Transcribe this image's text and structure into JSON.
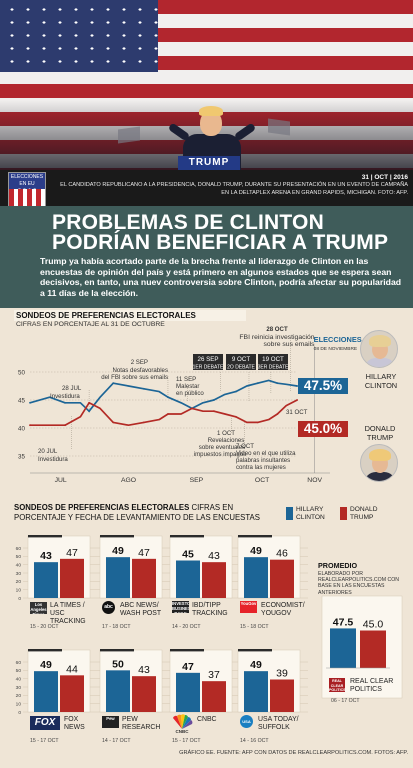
{
  "caption": {
    "date": "31 | OCT | 2016",
    "text": "EL CANDIDATO REPUBLICANO A LA PRESIDENCIA, DONALD TRUMP, DURANTE SU PRESENTACIÓN EN UN EVENTO DE CAMPAÑA EN LA DELTAPLEX ARENA EN GRAND RAPIDS, MICHIGAN. FOTO: AFP.",
    "badge_top": "ELECCIONES EN EU",
    "badge_year": "2016",
    "podium_sign": "TRUMP"
  },
  "headline": {
    "line1": "PROBLEMAS DE CLINTON",
    "line2": "PODRÍAN BENEFICIAR A TRUMP"
  },
  "lede": "Trump ya había acortado parte de la brecha frente al liderazgo de Clinton en las encuestas de opinión del país y está primero en algunos estados que se espera sean decisivos, en tanto, una nuev controversia sobre Clinton, podría afectar su popularidad a 11 días de la elección.",
  "colors": {
    "clinton": "#1c6596",
    "trump": "#b32a25",
    "headline_bg": "#3f5c5a",
    "page_bg": "#efe5d6"
  },
  "candidates": {
    "clinton_name": "HILLARY CLINTON",
    "trump_name": "DONALD TRUMP",
    "clinton_pct": "47.5%",
    "trump_pct": "45.0%"
  },
  "chart_data": [
    {
      "type": "line",
      "title": "SONDEOS DE PREFERENCIAS ELECTORALES",
      "subtitle": "CIFRAS EN PORCENTAJE AL 31 DE OCTUBRE",
      "ylim": [
        35,
        50
      ],
      "yticks": [
        35,
        40,
        45,
        50
      ],
      "xticks": [
        "JUL",
        "AGO",
        "SEP",
        "OCT",
        "NOV"
      ],
      "x_range": [
        "2016-07-01",
        "2016-11-15"
      ],
      "election_label": "ELECCIONES",
      "election_date": "08 DE NOVIEMBRE",
      "series": [
        {
          "name": "HILLARY CLINTON",
          "x": [
            "2016-07-01",
            "2016-07-10",
            "2016-07-17",
            "2016-07-24",
            "2016-07-28",
            "2016-08-02",
            "2016-08-08",
            "2016-08-15",
            "2016-08-22",
            "2016-08-29",
            "2016-09-02",
            "2016-09-08",
            "2016-09-13",
            "2016-09-18",
            "2016-09-23",
            "2016-09-28",
            "2016-10-03",
            "2016-10-08",
            "2016-10-13",
            "2016-10-18",
            "2016-10-22",
            "2016-10-26",
            "2016-10-31"
          ],
          "y": [
            44.5,
            45.5,
            44.5,
            44.5,
            43.0,
            45.5,
            48.0,
            47.5,
            47.0,
            46.5,
            45.5,
            44.5,
            43.5,
            44.5,
            45.0,
            46.0,
            46.5,
            47.5,
            48.0,
            48.5,
            48.0,
            47.8,
            47.5
          ]
        },
        {
          "name": "DONALD TRUMP",
          "x": [
            "2016-07-01",
            "2016-07-10",
            "2016-07-17",
            "2016-07-24",
            "2016-07-28",
            "2016-08-02",
            "2016-08-08",
            "2016-08-15",
            "2016-08-22",
            "2016-08-29",
            "2016-09-02",
            "2016-09-08",
            "2016-09-13",
            "2016-09-18",
            "2016-09-23",
            "2016-09-28",
            "2016-10-03",
            "2016-10-08",
            "2016-10-13",
            "2016-10-18",
            "2016-10-22",
            "2016-10-26",
            "2016-10-31"
          ],
          "y": [
            40.5,
            40.5,
            40.5,
            42.0,
            44.5,
            43.5,
            41.0,
            40.5,
            41.0,
            41.5,
            42.5,
            42.5,
            43.5,
            43.0,
            43.0,
            42.5,
            42.0,
            41.0,
            41.0,
            41.5,
            42.5,
            44.0,
            45.0
          ]
        }
      ],
      "annotations": [
        {
          "label": "20 JUL",
          "text": "Investidura"
        },
        {
          "label": "28 JUL",
          "text": "Investidura"
        },
        {
          "label": "2 SEP",
          "text": "Notas desfavorables del FBI sobre sus emails"
        },
        {
          "label": "11 SEP",
          "text": "Malestar en público"
        },
        {
          "label": "26 SEP",
          "text": "1ER DEBATE"
        },
        {
          "label": "9 OCT",
          "text": "2O DEBATE"
        },
        {
          "label": "19 OCT",
          "text": "3ER DEBATE"
        },
        {
          "label": "28 OCT",
          "text": "FBI reinicia investigación sobre sus emails"
        },
        {
          "label": "1 OCT",
          "text": "Revelaciones sobre eventuales impuestos impagos"
        },
        {
          "label": "7 OCT",
          "text": "Video en el que utiliza palabras insultantes contra las mujeres"
        },
        {
          "label": "31 OCT",
          "text": ""
        }
      ]
    },
    {
      "type": "bar",
      "title": "SONDEOS DE PREFERENCIAS ELECTORALES",
      "subtitle": "CIFRAS EN PORCENTAJE Y FECHA DE LEVANTAMIENTO DE LAS ENCUESTAS",
      "ylim": [
        0,
        60
      ],
      "yticks": [
        0,
        10,
        20,
        30,
        40,
        50,
        60
      ],
      "legend": [
        "HILLARY CLINTON",
        "DONALD TRUMP"
      ],
      "polls": [
        {
          "pollster": "LA TIMES / USC TRACKING",
          "logo": "Los Angeles Times",
          "date": "15 - 20 OCT",
          "clinton": 43,
          "trump": 47
        },
        {
          "pollster": "ABC NEWS/ WASH POST",
          "logo": "abc",
          "date": "17 - 18 OCT",
          "clinton": 49,
          "trump": 47
        },
        {
          "pollster": "IBD/TIPP TRACKING",
          "logo": "INVESTOR'S BUSINESS DAILY",
          "date": "14 - 20 OCT",
          "clinton": 45,
          "trump": 43
        },
        {
          "pollster": "ECONOMIST/ YOUGOV",
          "logo": "YouGov",
          "date": "15 - 18 OCT",
          "clinton": 49,
          "trump": 46
        },
        {
          "pollster": "FOX NEWS",
          "logo": "FOX",
          "date": "15 - 17 OCT",
          "clinton": 49,
          "trump": 44
        },
        {
          "pollster": "PEW RESEARCH",
          "logo": "Pew",
          "date": "14 - 17 OCT",
          "clinton": 50,
          "trump": 43
        },
        {
          "pollster": "CNBC",
          "logo": "CNBC",
          "date": "15 - 17 OCT",
          "clinton": 47,
          "trump": 37
        },
        {
          "pollster": "USA TODAY/ SUFFOLK",
          "logo": "USA",
          "date": "14 - 16 OCT",
          "clinton": 49,
          "trump": 39
        }
      ],
      "average": {
        "title": "PROMEDIO",
        "note": "ELABORADO POR REALCLEARPOLITICS.COM CON BASE EN LAS ENCUESTAS ANTERIORES",
        "pollster": "REAL CLEAR POLITICS",
        "logo": "REAL CLEAR POLITICS",
        "date": "06 - 17 OCT",
        "clinton": 47.5,
        "trump": 45.0,
        "clinton_label": "47.5",
        "trump_label": "45.0"
      }
    }
  ],
  "footer": "GRÁFICO EE. FUENTE: AFP CON DATOS DE REALCLEARPOLITICS.COM. FOTOS: AFP."
}
